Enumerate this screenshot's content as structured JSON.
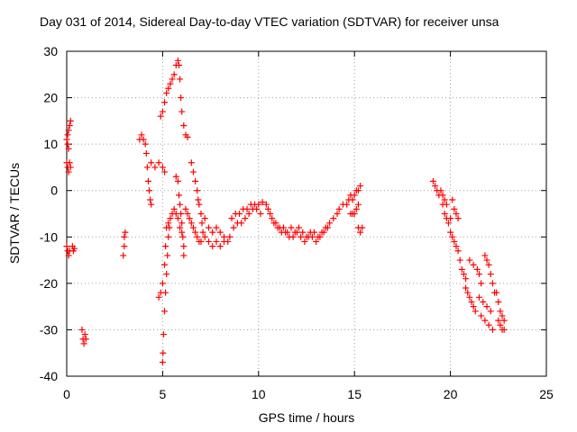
{
  "chart_data": {
    "type": "scatter",
    "title": "Day 031 of 2014, Sidereal Day-to-day VTEC variation (SDTVAR) for receiver unsa",
    "xlabel": "GPS time / hours",
    "ylabel": "SDTVAR / TECUs",
    "xlim": [
      0,
      25
    ],
    "ylim": [
      -40,
      30
    ],
    "xticks": [
      0,
      5,
      10,
      15,
      20,
      25
    ],
    "yticks": [
      -40,
      -30,
      -20,
      -10,
      0,
      10,
      20,
      30
    ],
    "grid": true,
    "marker": "+",
    "color": "#ff0000",
    "series": [
      {
        "name": "SDTVAR",
        "points": [
          [
            0.0,
            6
          ],
          [
            0.05,
            5
          ],
          [
            0.1,
            4
          ],
          [
            0.15,
            6
          ],
          [
            0.2,
            5
          ],
          [
            0.1,
            9
          ],
          [
            0.0,
            11
          ],
          [
            0.05,
            12
          ],
          [
            0.1,
            13
          ],
          [
            0.15,
            14
          ],
          [
            0.2,
            15
          ],
          [
            0.05,
            10
          ],
          [
            0.0,
            -12
          ],
          [
            0.05,
            -13
          ],
          [
            0.1,
            -14
          ],
          [
            0.15,
            -13
          ],
          [
            0.3,
            -12
          ],
          [
            0.35,
            -13
          ],
          [
            0.4,
            -12.5
          ],
          [
            0.8,
            -30
          ],
          [
            0.85,
            -32
          ],
          [
            0.9,
            -33
          ],
          [
            0.95,
            -31
          ],
          [
            1.0,
            -32
          ],
          [
            3.0,
            -10
          ],
          [
            3.0,
            -12
          ],
          [
            2.95,
            -14
          ],
          [
            3.05,
            -9
          ],
          [
            3.8,
            11
          ],
          [
            3.9,
            12
          ],
          [
            4.0,
            11
          ],
          [
            4.1,
            10
          ],
          [
            4.15,
            8
          ],
          [
            4.2,
            5
          ],
          [
            4.25,
            2
          ],
          [
            4.3,
            0
          ],
          [
            4.35,
            -2
          ],
          [
            4.4,
            -3
          ],
          [
            4.4,
            6
          ],
          [
            4.6,
            5
          ],
          [
            4.8,
            6
          ],
          [
            5.0,
            5
          ],
          [
            5.1,
            4
          ],
          [
            4.8,
            -23
          ],
          [
            4.9,
            -22
          ],
          [
            5.0,
            -20
          ],
          [
            5.1,
            -16
          ],
          [
            5.15,
            -12
          ],
          [
            5.2,
            -8
          ],
          [
            5.3,
            -7
          ],
          [
            5.4,
            -6
          ],
          [
            5.0,
            -37
          ],
          [
            5.02,
            -35
          ],
          [
            5.05,
            -31
          ],
          [
            5.1,
            -26
          ],
          [
            5.15,
            -22
          ],
          [
            5.2,
            -18
          ],
          [
            5.25,
            -14
          ],
          [
            5.3,
            -10
          ],
          [
            5.35,
            -8
          ],
          [
            4.9,
            16
          ],
          [
            5.0,
            17
          ],
          [
            5.1,
            19
          ],
          [
            5.2,
            21
          ],
          [
            5.3,
            22
          ],
          [
            5.4,
            23
          ],
          [
            5.5,
            24
          ],
          [
            5.6,
            25
          ],
          [
            5.7,
            27
          ],
          [
            5.8,
            28
          ],
          [
            5.85,
            27
          ],
          [
            5.9,
            24
          ],
          [
            5.95,
            20
          ],
          [
            6.0,
            17
          ],
          [
            6.1,
            14
          ],
          [
            6.2,
            12
          ],
          [
            6.3,
            11.5
          ],
          [
            5.7,
            3
          ],
          [
            5.8,
            2
          ],
          [
            5.85,
            -1
          ],
          [
            5.9,
            -3
          ],
          [
            5.95,
            -5
          ],
          [
            6.0,
            -7
          ],
          [
            6.05,
            -10
          ],
          [
            6.1,
            -12
          ],
          [
            6.1,
            -14
          ],
          [
            5.5,
            -5
          ],
          [
            5.6,
            -4
          ],
          [
            5.7,
            -5
          ],
          [
            5.8,
            -6
          ],
          [
            5.9,
            -8
          ],
          [
            6.0,
            -9
          ],
          [
            6.5,
            6
          ],
          [
            6.6,
            4
          ],
          [
            6.7,
            2
          ],
          [
            6.8,
            0
          ],
          [
            6.85,
            -2
          ],
          [
            6.9,
            -3
          ],
          [
            7.0,
            -5
          ],
          [
            7.05,
            -7
          ],
          [
            7.1,
            -9
          ],
          [
            6.2,
            -4
          ],
          [
            6.3,
            -5
          ],
          [
            6.4,
            -6
          ],
          [
            6.5,
            -7
          ],
          [
            6.6,
            -8
          ],
          [
            6.7,
            -9
          ],
          [
            6.8,
            -10
          ],
          [
            6.9,
            -11
          ],
          [
            7.0,
            -11
          ],
          [
            7.2,
            -10
          ],
          [
            7.4,
            -11
          ],
          [
            7.6,
            -12
          ],
          [
            7.8,
            -11
          ],
          [
            8.0,
            -12
          ],
          [
            8.2,
            -11
          ],
          [
            8.4,
            -11
          ],
          [
            8.5,
            -10
          ],
          [
            7.2,
            -6
          ],
          [
            7.4,
            -8
          ],
          [
            7.6,
            -9
          ],
          [
            7.8,
            -8
          ],
          [
            8.0,
            -9
          ],
          [
            8.2,
            -10
          ],
          [
            8.6,
            -6
          ],
          [
            8.8,
            -5
          ],
          [
            9.0,
            -5
          ],
          [
            9.2,
            -4
          ],
          [
            9.4,
            -4
          ],
          [
            9.6,
            -3
          ],
          [
            9.8,
            -3
          ],
          [
            10.0,
            -3
          ],
          [
            10.2,
            -2.5
          ],
          [
            10.4,
            -3
          ],
          [
            8.7,
            -8
          ],
          [
            8.9,
            -7
          ],
          [
            9.1,
            -7
          ],
          [
            9.3,
            -6
          ],
          [
            9.5,
            -5
          ],
          [
            9.7,
            -4
          ],
          [
            9.9,
            -4
          ],
          [
            10.1,
            -5
          ],
          [
            10.5,
            -4
          ],
          [
            10.7,
            -6
          ],
          [
            10.9,
            -7
          ],
          [
            11.1,
            -8
          ],
          [
            11.3,
            -8
          ],
          [
            11.5,
            -9
          ],
          [
            11.7,
            -8
          ],
          [
            11.9,
            -9
          ],
          [
            10.6,
            -5
          ],
          [
            10.8,
            -7
          ],
          [
            11.0,
            -8
          ],
          [
            11.2,
            -9
          ],
          [
            11.4,
            -9
          ],
          [
            11.6,
            -10
          ],
          [
            11.8,
            -10
          ],
          [
            12.0,
            -9
          ],
          [
            12.1,
            -8
          ],
          [
            12.3,
            -9
          ],
          [
            12.5,
            -10
          ],
          [
            12.7,
            -9
          ],
          [
            12.9,
            -9
          ],
          [
            13.1,
            -10
          ],
          [
            13.3,
            -9
          ],
          [
            13.5,
            -8
          ],
          [
            12.2,
            -10
          ],
          [
            12.4,
            -11
          ],
          [
            12.6,
            -10
          ],
          [
            12.8,
            -10
          ],
          [
            13.0,
            -11
          ],
          [
            13.2,
            -10
          ],
          [
            13.4,
            -9
          ],
          [
            13.6,
            -8
          ],
          [
            13.7,
            -7
          ],
          [
            13.9,
            -6
          ],
          [
            14.1,
            -5
          ],
          [
            14.2,
            -4
          ],
          [
            14.4,
            -3
          ],
          [
            14.6,
            -3
          ],
          [
            14.8,
            -5
          ],
          [
            14.9,
            -5
          ],
          [
            15.0,
            -5
          ],
          [
            15.1,
            -4
          ],
          [
            15.2,
            -3
          ],
          [
            14.7,
            -2
          ],
          [
            14.8,
            -1
          ],
          [
            14.9,
            -2
          ],
          [
            15.0,
            -1
          ],
          [
            15.1,
            0
          ],
          [
            15.2,
            0
          ],
          [
            15.3,
            1
          ],
          [
            15.2,
            -8
          ],
          [
            15.3,
            -9
          ],
          [
            15.4,
            -8
          ],
          [
            19.1,
            2
          ],
          [
            19.2,
            1
          ],
          [
            19.3,
            0
          ],
          [
            19.4,
            -1
          ],
          [
            19.5,
            0
          ],
          [
            19.6,
            -1
          ],
          [
            19.7,
            -2
          ],
          [
            19.8,
            -3
          ],
          [
            19.6,
            -3
          ],
          [
            19.7,
            -5
          ],
          [
            19.8,
            -6
          ],
          [
            19.9,
            -7
          ],
          [
            20.0,
            -6
          ],
          [
            20.1,
            -2
          ],
          [
            20.2,
            -4
          ],
          [
            20.3,
            -5
          ],
          [
            20.4,
            -6
          ],
          [
            20.0,
            -9
          ],
          [
            20.1,
            -10
          ],
          [
            20.2,
            -11
          ],
          [
            20.3,
            -12
          ],
          [
            20.4,
            -13
          ],
          [
            20.5,
            -15
          ],
          [
            20.6,
            -17
          ],
          [
            20.7,
            -18
          ],
          [
            20.8,
            -19
          ],
          [
            20.8,
            -21
          ],
          [
            20.9,
            -22
          ],
          [
            21.0,
            -23
          ],
          [
            21.1,
            -24
          ],
          [
            21.2,
            -25
          ],
          [
            21.3,
            -26
          ],
          [
            21.0,
            -15
          ],
          [
            21.2,
            -16
          ],
          [
            21.4,
            -17
          ],
          [
            21.5,
            -18
          ],
          [
            21.6,
            -20
          ],
          [
            21.8,
            -14
          ],
          [
            21.9,
            -15
          ],
          [
            22.0,
            -16
          ],
          [
            22.1,
            -18
          ],
          [
            22.2,
            -20
          ],
          [
            22.3,
            -22
          ],
          [
            21.5,
            -23
          ],
          [
            21.7,
            -24
          ],
          [
            21.9,
            -25
          ],
          [
            22.1,
            -26
          ],
          [
            21.6,
            -27
          ],
          [
            21.8,
            -28
          ],
          [
            22.0,
            -29
          ],
          [
            22.2,
            -30
          ],
          [
            22.4,
            -22
          ],
          [
            22.5,
            -24
          ],
          [
            22.6,
            -26
          ],
          [
            22.7,
            -27
          ],
          [
            22.8,
            -28
          ],
          [
            22.5,
            -28
          ],
          [
            22.6,
            -29
          ],
          [
            22.7,
            -30
          ],
          [
            22.8,
            -30
          ]
        ]
      }
    ]
  }
}
